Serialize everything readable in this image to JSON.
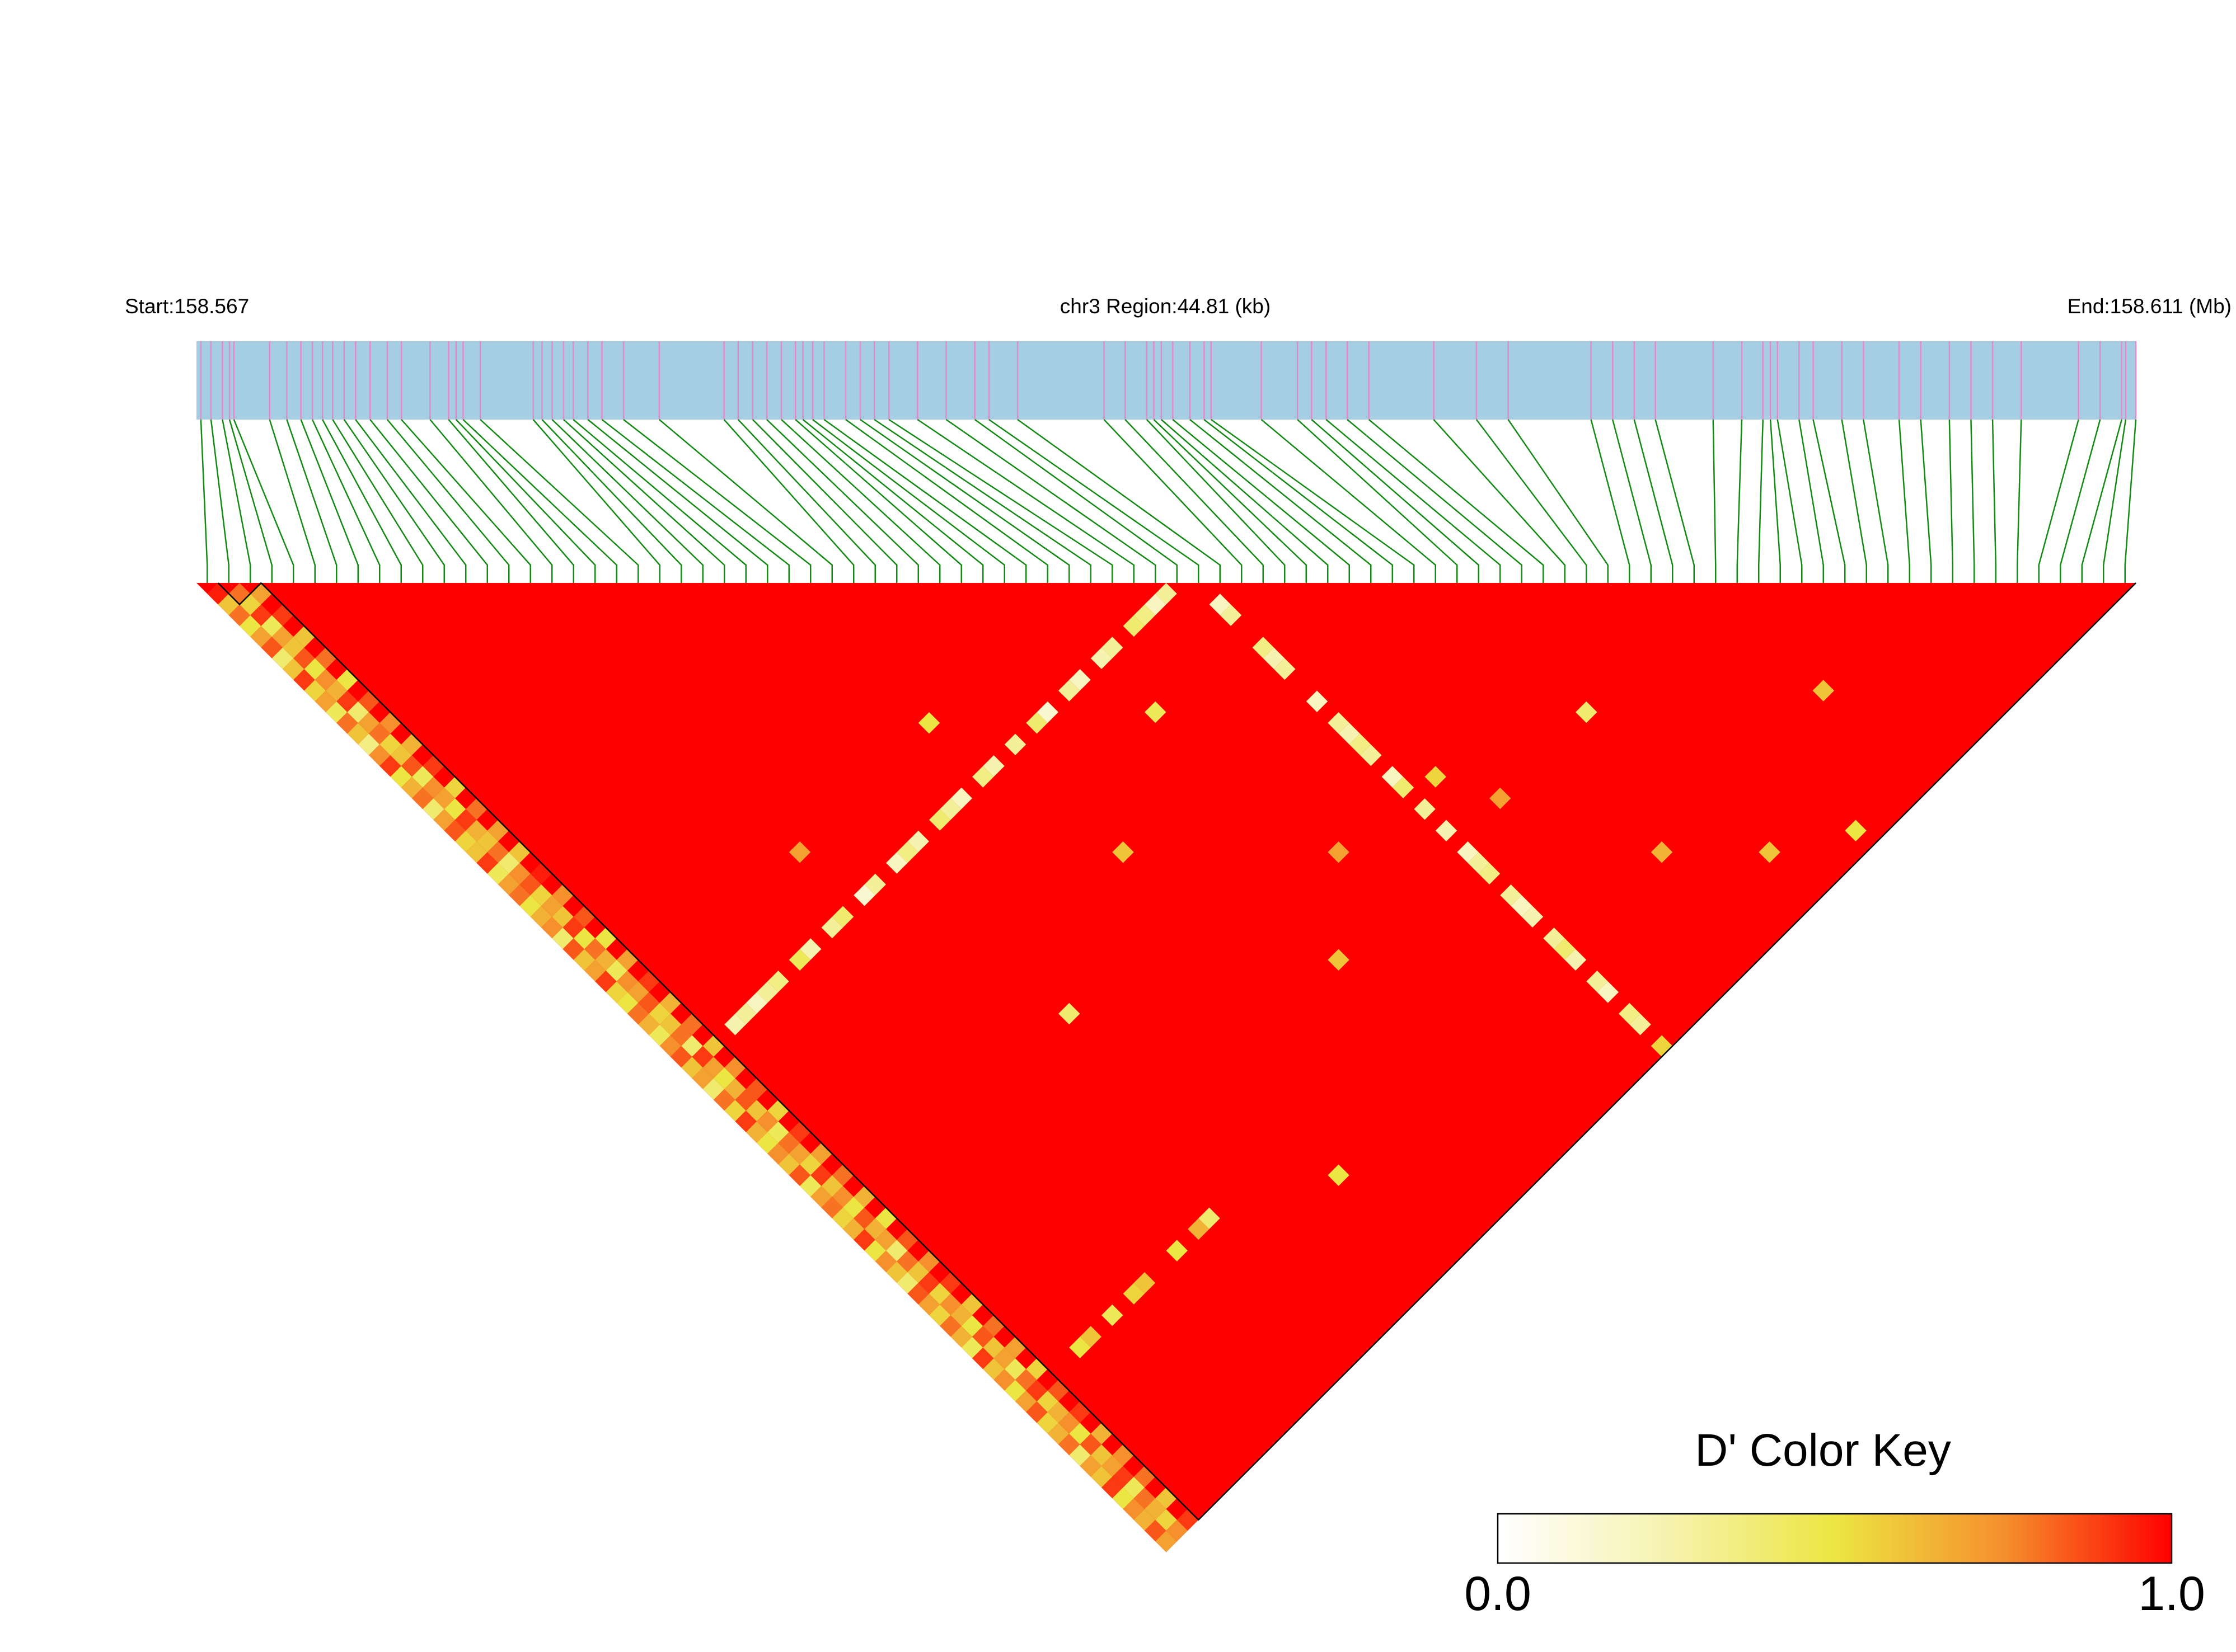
{
  "chart_data": {
    "type": "ld_heatmap",
    "title": "chr3 Region:44.81 (kb)",
    "start_label": "Start:158.567",
    "end_label": "End:158.611 (Mb)",
    "xlim": [
      158.567,
      158.611
    ],
    "snp_positions": [
      158.5671,
      158.56733,
      158.56759,
      158.56775,
      158.56785,
      158.56866,
      158.56905,
      158.56937,
      158.56963,
      158.56986,
      158.57009,
      158.57035,
      158.57061,
      158.57094,
      158.57133,
      158.57165,
      158.5723,
      158.57272,
      158.57289,
      158.57305,
      158.57344,
      158.57464,
      158.57484,
      158.57507,
      158.57533,
      158.57555,
      158.57588,
      158.5762,
      158.57669,
      158.5775,
      158.57897,
      158.57929,
      158.57962,
      158.57994,
      158.58027,
      158.58059,
      158.58076,
      158.58098,
      158.58124,
      158.58173,
      158.58206,
      158.58238,
      158.58271,
      158.58336,
      158.58401,
      158.58466,
      158.58498,
      158.58563,
      158.58759,
      158.58807,
      158.58856,
      158.58872,
      158.58889,
      158.58915,
      158.58954,
      158.58986,
      158.59002,
      158.59116,
      158.59198,
      158.5923,
      158.59263,
      158.59311,
      158.5936,
      158.59507,
      158.59604,
      158.59676,
      158.59864,
      158.59913,
      158.59962,
      158.6001,
      158.60141,
      158.60206,
      158.60254,
      158.60271,
      158.60287,
      158.60336,
      158.60368,
      158.60433,
      158.60482,
      158.60563,
      158.60612,
      158.60677,
      158.60726,
      158.60775,
      158.6084,
      158.6097,
      158.61019,
      158.61068,
      158.61077,
      158.611
    ],
    "background_dprime": 1,
    "cells": [
      [
        0,
        1,
        0.95
      ],
      [
        0,
        2,
        0.6
      ],
      [
        0,
        3,
        0.8
      ],
      [
        0,
        4,
        0.5
      ],
      [
        0,
        5,
        0.7
      ],
      [
        0,
        6,
        0.85
      ],
      [
        0,
        7,
        0.4
      ],
      [
        0,
        8,
        0.6
      ],
      [
        0,
        9,
        0.9
      ],
      [
        0,
        10,
        0.55
      ],
      [
        0,
        11,
        0.7
      ],
      [
        0,
        12,
        0.45
      ],
      [
        0,
        13,
        0.8
      ],
      [
        0,
        14,
        0.6
      ],
      [
        0,
        15,
        0.35
      ],
      [
        0,
        16,
        0.75
      ],
      [
        0,
        17,
        0.9
      ],
      [
        0,
        18,
        0.5
      ],
      [
        0,
        19,
        0.65
      ],
      [
        0,
        20,
        0.8
      ],
      [
        0,
        21,
        0.4
      ],
      [
        0,
        22,
        0.7
      ],
      [
        0,
        23,
        0.85
      ],
      [
        0,
        24,
        0.55
      ],
      [
        0,
        25,
        0.6
      ],
      [
        0,
        26,
        0.9
      ],
      [
        0,
        27,
        0.45
      ],
      [
        0,
        28,
        0.7
      ],
      [
        0,
        29,
        0.8
      ],
      [
        0,
        30,
        0.5
      ],
      [
        0,
        31,
        0.65
      ],
      [
        0,
        32,
        0.75
      ],
      [
        0,
        33,
        0.4
      ],
      [
        0,
        34,
        0.85
      ],
      [
        0,
        35,
        0.6
      ],
      [
        0,
        36,
        0.7
      ],
      [
        0,
        37,
        0.9
      ],
      [
        0,
        38,
        0.55
      ],
      [
        0,
        39,
        0.5
      ],
      [
        0,
        40,
        0.8
      ],
      [
        0,
        41,
        0.65
      ],
      [
        0,
        42,
        0.45
      ],
      [
        0,
        43,
        0.75
      ],
      [
        0,
        44,
        0.85
      ],
      [
        0,
        45,
        0.6
      ],
      [
        0,
        46,
        0.7
      ],
      [
        0,
        47,
        0.4
      ],
      [
        0,
        48,
        0.8
      ],
      [
        0,
        49,
        0.55
      ],
      [
        0,
        50,
        0.9
      ],
      [
        0,
        51,
        0.65
      ],
      [
        0,
        52,
        0.5
      ],
      [
        0,
        53,
        0.75
      ],
      [
        0,
        54,
        0.6
      ],
      [
        0,
        55,
        0.85
      ],
      [
        0,
        56,
        0.45
      ],
      [
        0,
        57,
        0.7
      ],
      [
        0,
        58,
        0.8
      ],
      [
        0,
        59,
        0.55
      ],
      [
        0,
        60,
        0.65
      ],
      [
        0,
        61,
        0.9
      ],
      [
        0,
        62,
        0.5
      ],
      [
        0,
        63,
        0.75
      ],
      [
        0,
        64,
        0.6
      ],
      [
        0,
        65,
        0.4
      ],
      [
        0,
        66,
        0.85
      ],
      [
        0,
        67,
        0.7
      ],
      [
        0,
        68,
        0.55
      ],
      [
        0,
        69,
        0.8
      ],
      [
        0,
        70,
        0.65
      ],
      [
        0,
        71,
        0.45
      ],
      [
        0,
        72,
        0.9
      ],
      [
        0,
        73,
        0.6
      ],
      [
        0,
        74,
        0.75
      ],
      [
        0,
        75,
        0.5
      ],
      [
        0,
        76,
        0.7
      ],
      [
        0,
        77,
        0.85
      ],
      [
        0,
        78,
        0.55
      ],
      [
        0,
        79,
        0.65
      ],
      [
        0,
        80,
        0.8
      ],
      [
        0,
        81,
        0.4
      ],
      [
        0,
        82,
        0.7
      ],
      [
        0,
        83,
        0.6
      ],
      [
        0,
        84,
        0.9
      ],
      [
        0,
        85,
        0.5
      ],
      [
        0,
        86,
        0.75
      ],
      [
        0,
        87,
        0.65
      ],
      [
        0,
        88,
        0.85
      ],
      [
        0,
        89,
        0.7
      ],
      [
        1,
        2,
        0.8
      ],
      [
        1,
        3,
        0.55
      ],
      [
        1,
        4,
        0.9
      ],
      [
        1,
        5,
        0.45
      ],
      [
        1,
        6,
        0.7
      ],
      [
        1,
        7,
        0.6
      ],
      [
        1,
        8,
        0.85
      ],
      [
        1,
        9,
        0.5
      ],
      [
        1,
        10,
        0.75
      ],
      [
        1,
        11,
        0.65
      ],
      [
        1,
        12,
        0.9
      ],
      [
        1,
        13,
        0.4
      ],
      [
        1,
        14,
        0.7
      ],
      [
        1,
        15,
        0.8
      ],
      [
        1,
        16,
        0.55
      ],
      [
        1,
        17,
        0.6
      ],
      [
        1,
        18,
        0.85
      ],
      [
        1,
        19,
        0.45
      ],
      [
        1,
        20,
        0.75
      ],
      [
        1,
        21,
        0.7
      ],
      [
        1,
        22,
        0.5
      ],
      [
        1,
        23,
        0.9
      ],
      [
        1,
        24,
        0.65
      ],
      [
        1,
        25,
        0.6
      ],
      [
        1,
        26,
        0.8
      ],
      [
        1,
        27,
        0.4
      ],
      [
        1,
        28,
        0.75
      ],
      [
        1,
        29,
        0.85
      ],
      [
        1,
        30,
        0.55
      ],
      [
        1,
        31,
        0.7
      ],
      [
        1,
        32,
        0.6
      ],
      [
        1,
        33,
        0.9
      ],
      [
        1,
        34,
        0.5
      ],
      [
        1,
        35,
        0.8
      ],
      [
        1,
        36,
        0.65
      ],
      [
        1,
        37,
        0.45
      ],
      [
        1,
        38,
        0.75
      ],
      [
        1,
        39,
        0.7
      ],
      [
        1,
        40,
        0.85
      ],
      [
        1,
        41,
        0.55
      ],
      [
        1,
        42,
        0.6
      ],
      [
        1,
        43,
        0.8
      ],
      [
        1,
        44,
        0.4
      ],
      [
        1,
        45,
        0.9
      ],
      [
        1,
        46,
        0.7
      ],
      [
        1,
        47,
        0.5
      ],
      [
        1,
        48,
        0.65
      ],
      [
        1,
        49,
        0.85
      ],
      [
        1,
        50,
        0.6
      ],
      [
        1,
        51,
        0.75
      ],
      [
        1,
        52,
        0.45
      ],
      [
        1,
        53,
        0.8
      ],
      [
        1,
        54,
        0.7
      ],
      [
        1,
        55,
        0.55
      ],
      [
        1,
        56,
        0.9
      ],
      [
        1,
        57,
        0.6
      ],
      [
        1,
        58,
        0.75
      ],
      [
        1,
        59,
        0.5
      ],
      [
        1,
        60,
        0.85
      ],
      [
        1,
        61,
        0.65
      ],
      [
        1,
        62,
        0.7
      ],
      [
        1,
        63,
        0.4
      ],
      [
        1,
        64,
        0.8
      ],
      [
        1,
        65,
        0.6
      ],
      [
        1,
        66,
        0.9
      ],
      [
        1,
        67,
        0.55
      ],
      [
        1,
        68,
        0.75
      ],
      [
        1,
        69,
        0.65
      ],
      [
        1,
        70,
        0.5
      ],
      [
        1,
        71,
        0.85
      ],
      [
        1,
        72,
        0.6
      ],
      [
        1,
        73,
        0.7
      ],
      [
        1,
        74,
        0.45
      ],
      [
        1,
        75,
        0.8
      ],
      [
        1,
        76,
        0.9
      ],
      [
        1,
        77,
        0.55
      ],
      [
        1,
        78,
        0.65
      ],
      [
        1,
        79,
        0.75
      ],
      [
        1,
        80,
        0.5
      ],
      [
        1,
        81,
        0.85
      ],
      [
        1,
        82,
        0.6
      ],
      [
        1,
        83,
        0.7
      ],
      [
        1,
        84,
        0.9
      ],
      [
        1,
        85,
        0.45
      ],
      [
        1,
        86,
        0.8
      ],
      [
        1,
        87,
        0.65
      ],
      [
        1,
        88,
        0.55
      ],
      [
        1,
        89,
        0.75
      ],
      [
        2,
        3,
        0.7
      ],
      [
        2,
        5,
        0.9
      ],
      [
        2,
        7,
        0.6
      ],
      [
        2,
        9,
        0.8
      ],
      [
        2,
        11,
        0.5
      ],
      [
        2,
        13,
        0.85
      ],
      [
        2,
        15,
        0.75
      ],
      [
        2,
        17,
        0.65
      ],
      [
        2,
        19,
        0.9
      ],
      [
        2,
        21,
        0.55
      ],
      [
        2,
        23,
        0.8
      ],
      [
        2,
        25,
        0.7
      ],
      [
        2,
        27,
        0.6
      ],
      [
        2,
        29,
        0.95
      ],
      [
        2,
        31,
        0.75
      ],
      [
        2,
        33,
        0.85
      ],
      [
        2,
        35,
        0.5
      ],
      [
        2,
        37,
        0.7
      ],
      [
        2,
        39,
        0.9
      ],
      [
        2,
        41,
        0.65
      ],
      [
        2,
        43,
        0.8
      ],
      [
        2,
        45,
        0.6
      ],
      [
        2,
        47,
        0.75
      ],
      [
        2,
        49,
        0.85
      ],
      [
        2,
        51,
        0.55
      ],
      [
        2,
        53,
        0.9
      ],
      [
        2,
        55,
        0.7
      ],
      [
        2,
        57,
        0.8
      ],
      [
        2,
        59,
        0.65
      ],
      [
        2,
        61,
        0.5
      ],
      [
        2,
        63,
        0.85
      ],
      [
        2,
        65,
        0.75
      ],
      [
        2,
        67,
        0.9
      ],
      [
        2,
        69,
        0.6
      ],
      [
        2,
        71,
        0.8
      ],
      [
        2,
        73,
        0.7
      ],
      [
        2,
        75,
        0.55
      ],
      [
        2,
        77,
        0.85
      ],
      [
        2,
        79,
        0.9
      ],
      [
        2,
        81,
        0.65
      ],
      [
        2,
        83,
        0.75
      ],
      [
        2,
        85,
        0.8
      ],
      [
        2,
        87,
        0.6
      ],
      [
        2,
        89,
        0.9
      ],
      [
        44,
        45,
        0.3
      ],
      [
        43,
        45,
        0.2
      ],
      [
        42,
        45,
        0.35
      ],
      [
        41,
        45,
        0.4
      ],
      [
        39,
        45,
        0.3
      ],
      [
        38,
        45,
        0.25
      ],
      [
        36,
        45,
        0.2
      ],
      [
        35,
        45,
        0.3
      ],
      [
        33,
        45,
        0.15
      ],
      [
        32,
        45,
        0.4
      ],
      [
        30,
        45,
        0.3
      ],
      [
        28,
        45,
        0.25
      ],
      [
        27,
        45,
        0.35
      ],
      [
        25,
        45,
        0.2
      ],
      [
        24,
        45,
        0.3
      ],
      [
        23,
        45,
        0.4
      ],
      [
        21,
        45,
        0.25
      ],
      [
        20,
        45,
        0.35
      ],
      [
        19,
        45,
        0.2
      ],
      [
        17,
        45,
        0.3
      ],
      [
        16,
        45,
        0.15
      ],
      [
        14,
        45,
        0.4
      ],
      [
        13,
        45,
        0.3
      ],
      [
        11,
        45,
        0.25
      ],
      [
        10,
        45,
        0.45
      ],
      [
        8,
        45,
        0.35
      ],
      [
        7,
        45,
        0.3
      ],
      [
        6,
        45,
        0.2
      ],
      [
        5,
        45,
        0.3
      ],
      [
        4,
        45,
        0.25
      ],
      [
        46,
        48,
        0.2
      ],
      [
        46,
        49,
        0.3
      ],
      [
        46,
        52,
        0.35
      ],
      [
        46,
        53,
        0.25
      ],
      [
        46,
        54,
        0.3
      ],
      [
        46,
        57,
        0.2
      ],
      [
        46,
        59,
        0.3
      ],
      [
        46,
        60,
        0.25
      ],
      [
        46,
        61,
        0.35
      ],
      [
        46,
        62,
        0.3
      ],
      [
        46,
        64,
        0.2
      ],
      [
        46,
        65,
        0.4
      ],
      [
        46,
        67,
        0.3
      ],
      [
        46,
        69,
        0.25
      ],
      [
        46,
        71,
        0.2
      ],
      [
        46,
        72,
        0.3
      ],
      [
        46,
        73,
        0.35
      ],
      [
        46,
        75,
        0.3
      ],
      [
        46,
        76,
        0.2
      ],
      [
        46,
        77,
        0.25
      ],
      [
        46,
        79,
        0.3
      ],
      [
        46,
        80,
        0.4
      ],
      [
        46,
        81,
        0.25
      ],
      [
        46,
        83,
        0.3
      ],
      [
        46,
        84,
        0.2
      ],
      [
        46,
        86,
        0.35
      ],
      [
        46,
        87,
        0.3
      ],
      [
        46,
        89,
        0.55
      ],
      [
        5,
        76,
        0.5
      ],
      [
        6,
        76,
        0.6
      ],
      [
        8,
        76,
        0.45
      ],
      [
        10,
        76,
        0.55
      ],
      [
        11,
        76,
        0.6
      ],
      [
        14,
        76,
        0.5
      ],
      [
        16,
        76,
        0.65
      ],
      [
        17,
        76,
        0.4
      ],
      [
        27,
        40,
        0.5
      ],
      [
        20,
        60,
        0.4
      ],
      [
        35,
        70,
        0.6
      ],
      [
        50,
        70,
        0.7
      ],
      [
        60,
        85,
        0.6
      ],
      [
        55,
        80,
        0.65
      ],
      [
        40,
        65,
        0.7
      ],
      [
        30,
        55,
        0.6
      ],
      [
        65,
        88,
        0.5
      ],
      [
        38,
        50,
        0.45
      ],
      [
        58,
        70,
        0.4
      ],
      [
        25,
        80,
        0.5
      ],
      [
        70,
        80,
        0.6
      ],
      [
        15,
        40,
        0.7
      ],
      [
        48,
        66,
        0.55
      ]
    ],
    "blocks": [
      [
        1,
        2
      ],
      [
        3,
        89
      ]
    ],
    "colors": [
      "#ffffff",
      "#f6f3b0",
      "#ece642",
      "#f5902c",
      "#ff0000"
    ],
    "bar_color": "#a6cee3",
    "snp_color": "#e58ac8",
    "link_color": "#138a13",
    "color_key": {
      "title": "D' Color Key",
      "lim": [
        0,
        1
      ],
      "ticks": [
        {
          "value": 0,
          "label": "0.0"
        },
        {
          "value": 1,
          "label": "1.0"
        }
      ]
    }
  }
}
